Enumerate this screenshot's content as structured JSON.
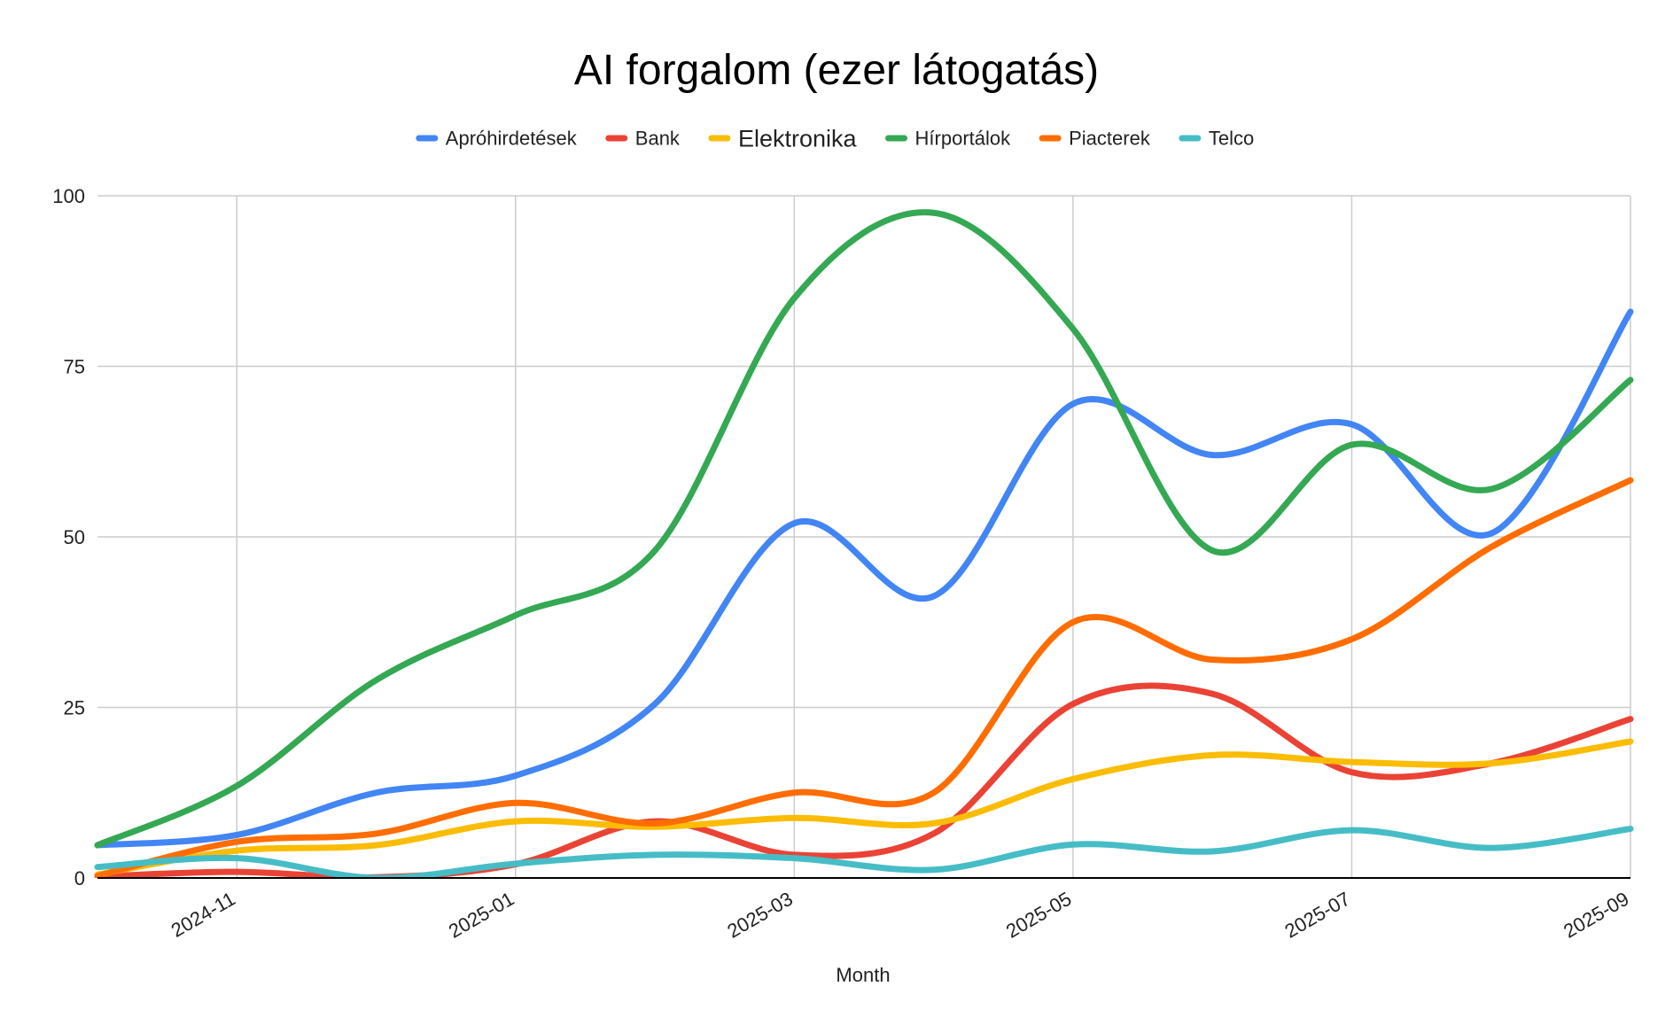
{
  "chart_data": {
    "type": "line",
    "title": "AI forgalom (ezer látogatás)",
    "xlabel": "Month",
    "ylabel": "",
    "x": [
      "2024-10",
      "2024-11",
      "2024-12",
      "2025-01",
      "2025-02",
      "2025-03",
      "2025-04",
      "2025-05",
      "2025-06",
      "2025-07",
      "2025-08",
      "2025-09"
    ],
    "x_tick_labels": [
      "2024-11",
      "2025-01",
      "2025-03",
      "2025-05",
      "2025-07",
      "2025-09"
    ],
    "y_ticks": [
      0,
      25,
      50,
      75,
      100
    ],
    "ylim": [
      0,
      100
    ],
    "grid": true,
    "legend_position": "top",
    "series": [
      {
        "name": "Apróhirdetések",
        "color": "#4285F4",
        "values": [
          4.8,
          6.3,
          12.5,
          15,
          25.5,
          52,
          41.3,
          69.5,
          62,
          66.5,
          50.5,
          83
        ]
      },
      {
        "name": "Bank",
        "color": "#EA4335",
        "values": [
          0.2,
          0.9,
          0.1,
          2,
          8.3,
          3.4,
          6.5,
          25.5,
          27,
          15.5,
          16.8,
          23.3
        ]
      },
      {
        "name": "Elektronika",
        "color": "#FBBC04",
        "values": [
          0.5,
          4,
          4.8,
          8.3,
          7.5,
          8.8,
          8,
          14.5,
          18,
          17,
          16.8,
          20
        ]
      },
      {
        "name": "Hírportálok",
        "color": "#34A853",
        "values": [
          4.8,
          13.5,
          29,
          38.5,
          48,
          85,
          97.5,
          80.5,
          48,
          63.5,
          57,
          73
        ]
      },
      {
        "name": "Piacterek",
        "color": "#FF6D01",
        "values": [
          0.3,
          5.3,
          6.5,
          11,
          8,
          12.5,
          12.5,
          37.5,
          32,
          35,
          48.5,
          58.3
        ]
      },
      {
        "name": "Telco",
        "color": "#46BDC6",
        "values": [
          1.6,
          2.9,
          0,
          2.1,
          3.4,
          2.9,
          1.2,
          4.9,
          3.9,
          7,
          4.4,
          7.2
        ]
      }
    ]
  }
}
